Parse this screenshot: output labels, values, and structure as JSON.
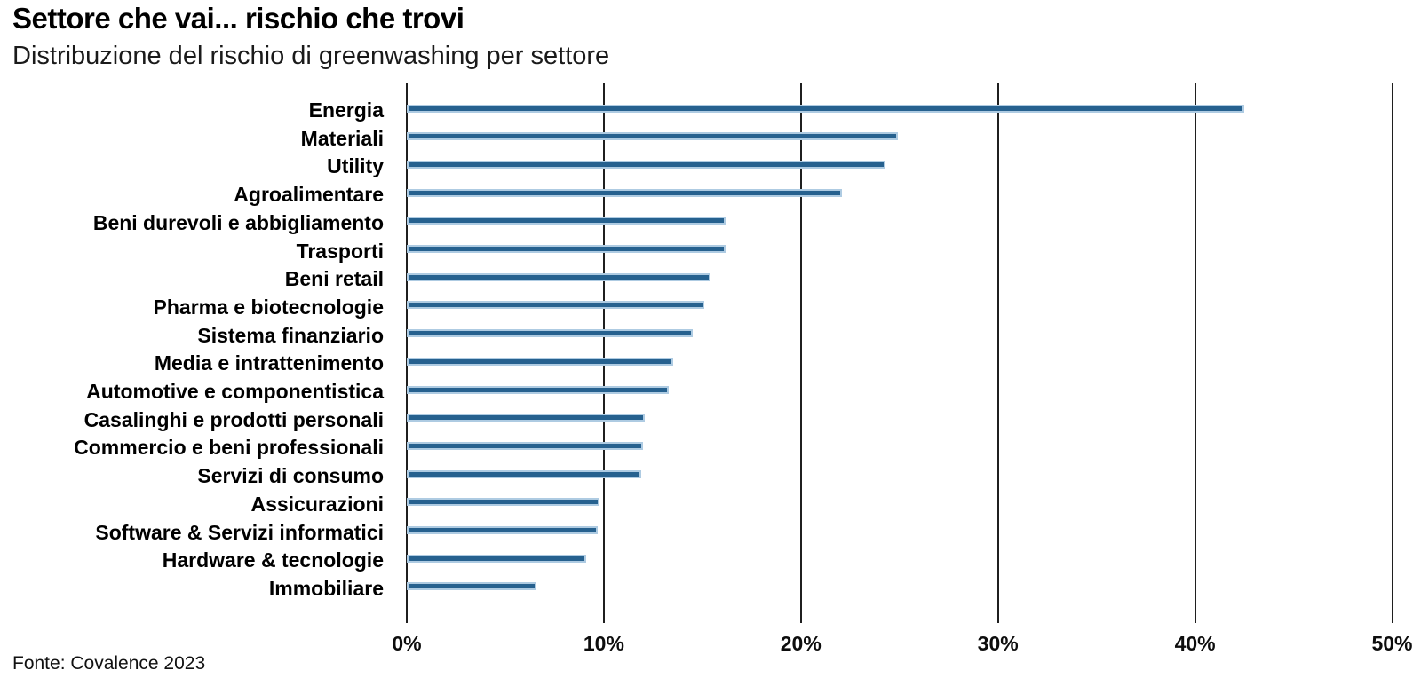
{
  "header": {
    "title": "Settore che vai... rischio che trovi",
    "subtitle": "Distribuzione del rischio di greenwashing per settore"
  },
  "source": "Fonte: Covalence 2023",
  "chart_data": {
    "type": "bar",
    "orientation": "horizontal",
    "title": "Settore che vai... rischio che trovi",
    "subtitle": "Distribuzione del rischio di greenwashing per settore",
    "categories": [
      "Energia",
      "Materiali",
      "Utility",
      "Agroalimentare",
      "Beni durevoli e abbigliamento",
      "Trasporti",
      "Beni retail",
      "Pharma e biotecnologie",
      "Sistema finanziario",
      "Media e intrattenimento",
      "Automotive e componentistica",
      "Casalinghi e prodotti personali",
      "Commercio e beni professionali",
      "Servizi di consumo",
      "Assicurazioni",
      "Software & Servizi informatici",
      "Hardware & tecnologie",
      "Immobiliare"
    ],
    "values": [
      42.5,
      24.9,
      24.3,
      22.1,
      16.2,
      16.2,
      15.4,
      15.1,
      14.5,
      13.5,
      13.3,
      12.1,
      12.0,
      11.9,
      9.8,
      9.7,
      9.1,
      6.6
    ],
    "unit": "%",
    "xlabel": "",
    "ylabel": "",
    "xlim": [
      0,
      50
    ],
    "x_ticks": [
      0,
      10,
      20,
      30,
      40,
      50
    ],
    "x_tick_labels": [
      "0%",
      "10%",
      "20%",
      "30%",
      "40%",
      "50%"
    ],
    "grid": "vertical-gridlines-on",
    "legend": "none",
    "bar_color": "#26618f",
    "bar_border_color": "#aecbe2",
    "gridline_color": "#1f1f1f",
    "source": "Fonte: Covalence 2023"
  }
}
